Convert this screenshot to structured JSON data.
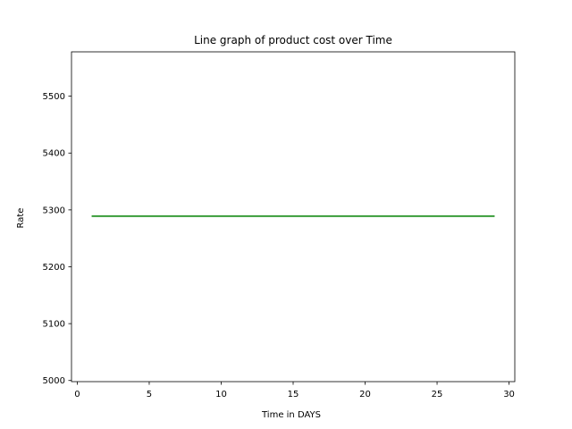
{
  "chart_data": {
    "type": "line",
    "title": "Line graph of product cost over Time",
    "xlabel": "Time in DAYS",
    "ylabel": "Rate",
    "xlim": [
      -0.4,
      30.4
    ],
    "ylim": [
      4998,
      5578
    ],
    "xticks": [
      0,
      5,
      10,
      15,
      20,
      25,
      30
    ],
    "yticks": [
      5000,
      5100,
      5200,
      5300,
      5400,
      5500
    ],
    "grid": false,
    "legend": "none",
    "series": [
      {
        "color": "#008000",
        "x": [
          1,
          29
        ],
        "y": [
          5289,
          5289
        ]
      }
    ]
  }
}
